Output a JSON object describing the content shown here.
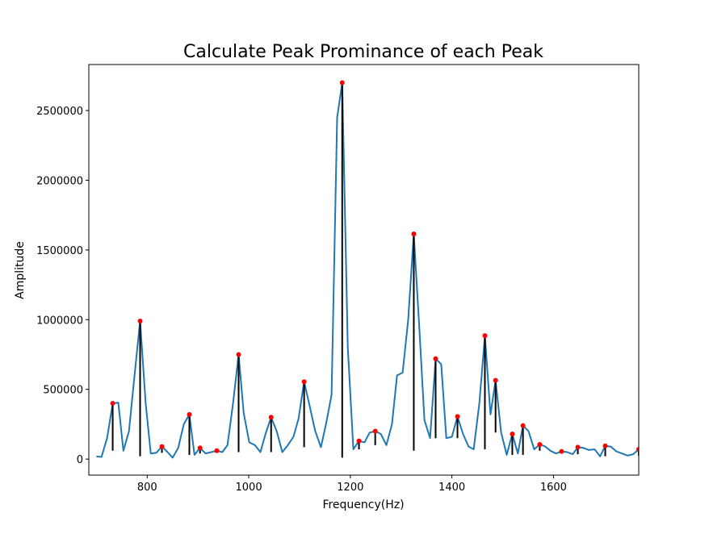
{
  "chart_data": {
    "type": "line",
    "title": "Calculate Peak Prominance of each Peak",
    "xlabel": "Frequency(Hz)",
    "ylabel": "Amplitude",
    "xlim": [
      685,
      1768
    ],
    "ylim": [
      -115000,
      2830000
    ],
    "xticks": [
      800,
      1000,
      1200,
      1400,
      1600
    ],
    "yticks": [
      0,
      500000,
      1000000,
      1500000,
      2000000,
      2500000
    ],
    "ytick_labels": [
      "0",
      "500000",
      "1000000",
      "1500000",
      "2000000",
      "2500000"
    ],
    "grid": false,
    "colors": {
      "line": "#1f77b4",
      "peak": "#ff0000",
      "prominence": "#000000"
    },
    "series": [
      {
        "x": [
          700,
          710,
          721,
          732,
          743,
          753,
          764,
          775,
          786,
          797,
          807,
          818,
          829,
          840,
          850,
          861,
          872,
          883,
          893,
          904,
          915,
          926,
          937,
          948,
          958,
          969,
          980,
          990,
          1001,
          1012,
          1023,
          1033,
          1044,
          1055,
          1066,
          1077,
          1088,
          1098,
          1109,
          1120,
          1131,
          1142,
          1152,
          1163,
          1174,
          1184,
          1195,
          1206,
          1217,
          1228,
          1238,
          1249,
          1260,
          1271,
          1282,
          1292,
          1303,
          1314,
          1325,
          1335,
          1346,
          1357,
          1368,
          1379,
          1389,
          1400,
          1411,
          1422,
          1433,
          1443,
          1454,
          1465,
          1476,
          1486,
          1497,
          1508,
          1519,
          1530,
          1540,
          1551,
          1562,
          1573,
          1584,
          1594,
          1605,
          1616,
          1627,
          1638,
          1648,
          1659,
          1670,
          1681,
          1692,
          1702,
          1713,
          1724,
          1735,
          1746,
          1757,
          1768
        ],
        "y": [
          20000,
          15000,
          150000,
          400000,
          405000,
          60000,
          200000,
          600000,
          990000,
          400000,
          40000,
          45000,
          90000,
          50000,
          10000,
          80000,
          250000,
          320000,
          30000,
          80000,
          40000,
          50000,
          60000,
          50000,
          100000,
          400000,
          750000,
          330000,
          120000,
          100000,
          50000,
          180000,
          300000,
          200000,
          50000,
          100000,
          160000,
          290000,
          555000,
          380000,
          200000,
          85000,
          250000,
          460000,
          2450000,
          2700000,
          800000,
          70000,
          130000,
          120000,
          190000,
          200000,
          180000,
          100000,
          250000,
          600000,
          620000,
          1000000,
          1615000,
          1000000,
          280000,
          150000,
          720000,
          680000,
          150000,
          160000,
          305000,
          180000,
          90000,
          70000,
          400000,
          885000,
          320000,
          565000,
          190000,
          30000,
          180000,
          40000,
          240000,
          200000,
          70000,
          105000,
          90000,
          60000,
          40000,
          55000,
          50000,
          35000,
          85000,
          80000,
          65000,
          70000,
          20000,
          95000,
          90000,
          55000,
          40000,
          25000,
          35000,
          70000
        ]
      }
    ],
    "peaks": [
      {
        "x": 732,
        "y": 400000,
        "base": 60000
      },
      {
        "x": 786,
        "y": 990000,
        "base": 20000
      },
      {
        "x": 829,
        "y": 90000,
        "base": 45000
      },
      {
        "x": 883,
        "y": 320000,
        "base": 30000
      },
      {
        "x": 904,
        "y": 80000,
        "base": 40000
      },
      {
        "x": 937,
        "y": 60000,
        "base": 50000
      },
      {
        "x": 980,
        "y": 750000,
        "base": 50000
      },
      {
        "x": 1044,
        "y": 300000,
        "base": 50000
      },
      {
        "x": 1109,
        "y": 555000,
        "base": 85000
      },
      {
        "x": 1184,
        "y": 2700000,
        "base": 10000
      },
      {
        "x": 1217,
        "y": 130000,
        "base": 70000
      },
      {
        "x": 1249,
        "y": 200000,
        "base": 100000
      },
      {
        "x": 1325,
        "y": 1615000,
        "base": 60000
      },
      {
        "x": 1368,
        "y": 720000,
        "base": 150000
      },
      {
        "x": 1411,
        "y": 305000,
        "base": 150000
      },
      {
        "x": 1465,
        "y": 885000,
        "base": 70000
      },
      {
        "x": 1486,
        "y": 565000,
        "base": 190000
      },
      {
        "x": 1519,
        "y": 180000,
        "base": 30000
      },
      {
        "x": 1540,
        "y": 240000,
        "base": 30000
      },
      {
        "x": 1573,
        "y": 105000,
        "base": 60000
      },
      {
        "x": 1616,
        "y": 55000,
        "base": 40000
      },
      {
        "x": 1648,
        "y": 85000,
        "base": 35000
      },
      {
        "x": 1702,
        "y": 95000,
        "base": 20000
      },
      {
        "x": 1768,
        "y": 70000,
        "base": 25000
      }
    ]
  }
}
